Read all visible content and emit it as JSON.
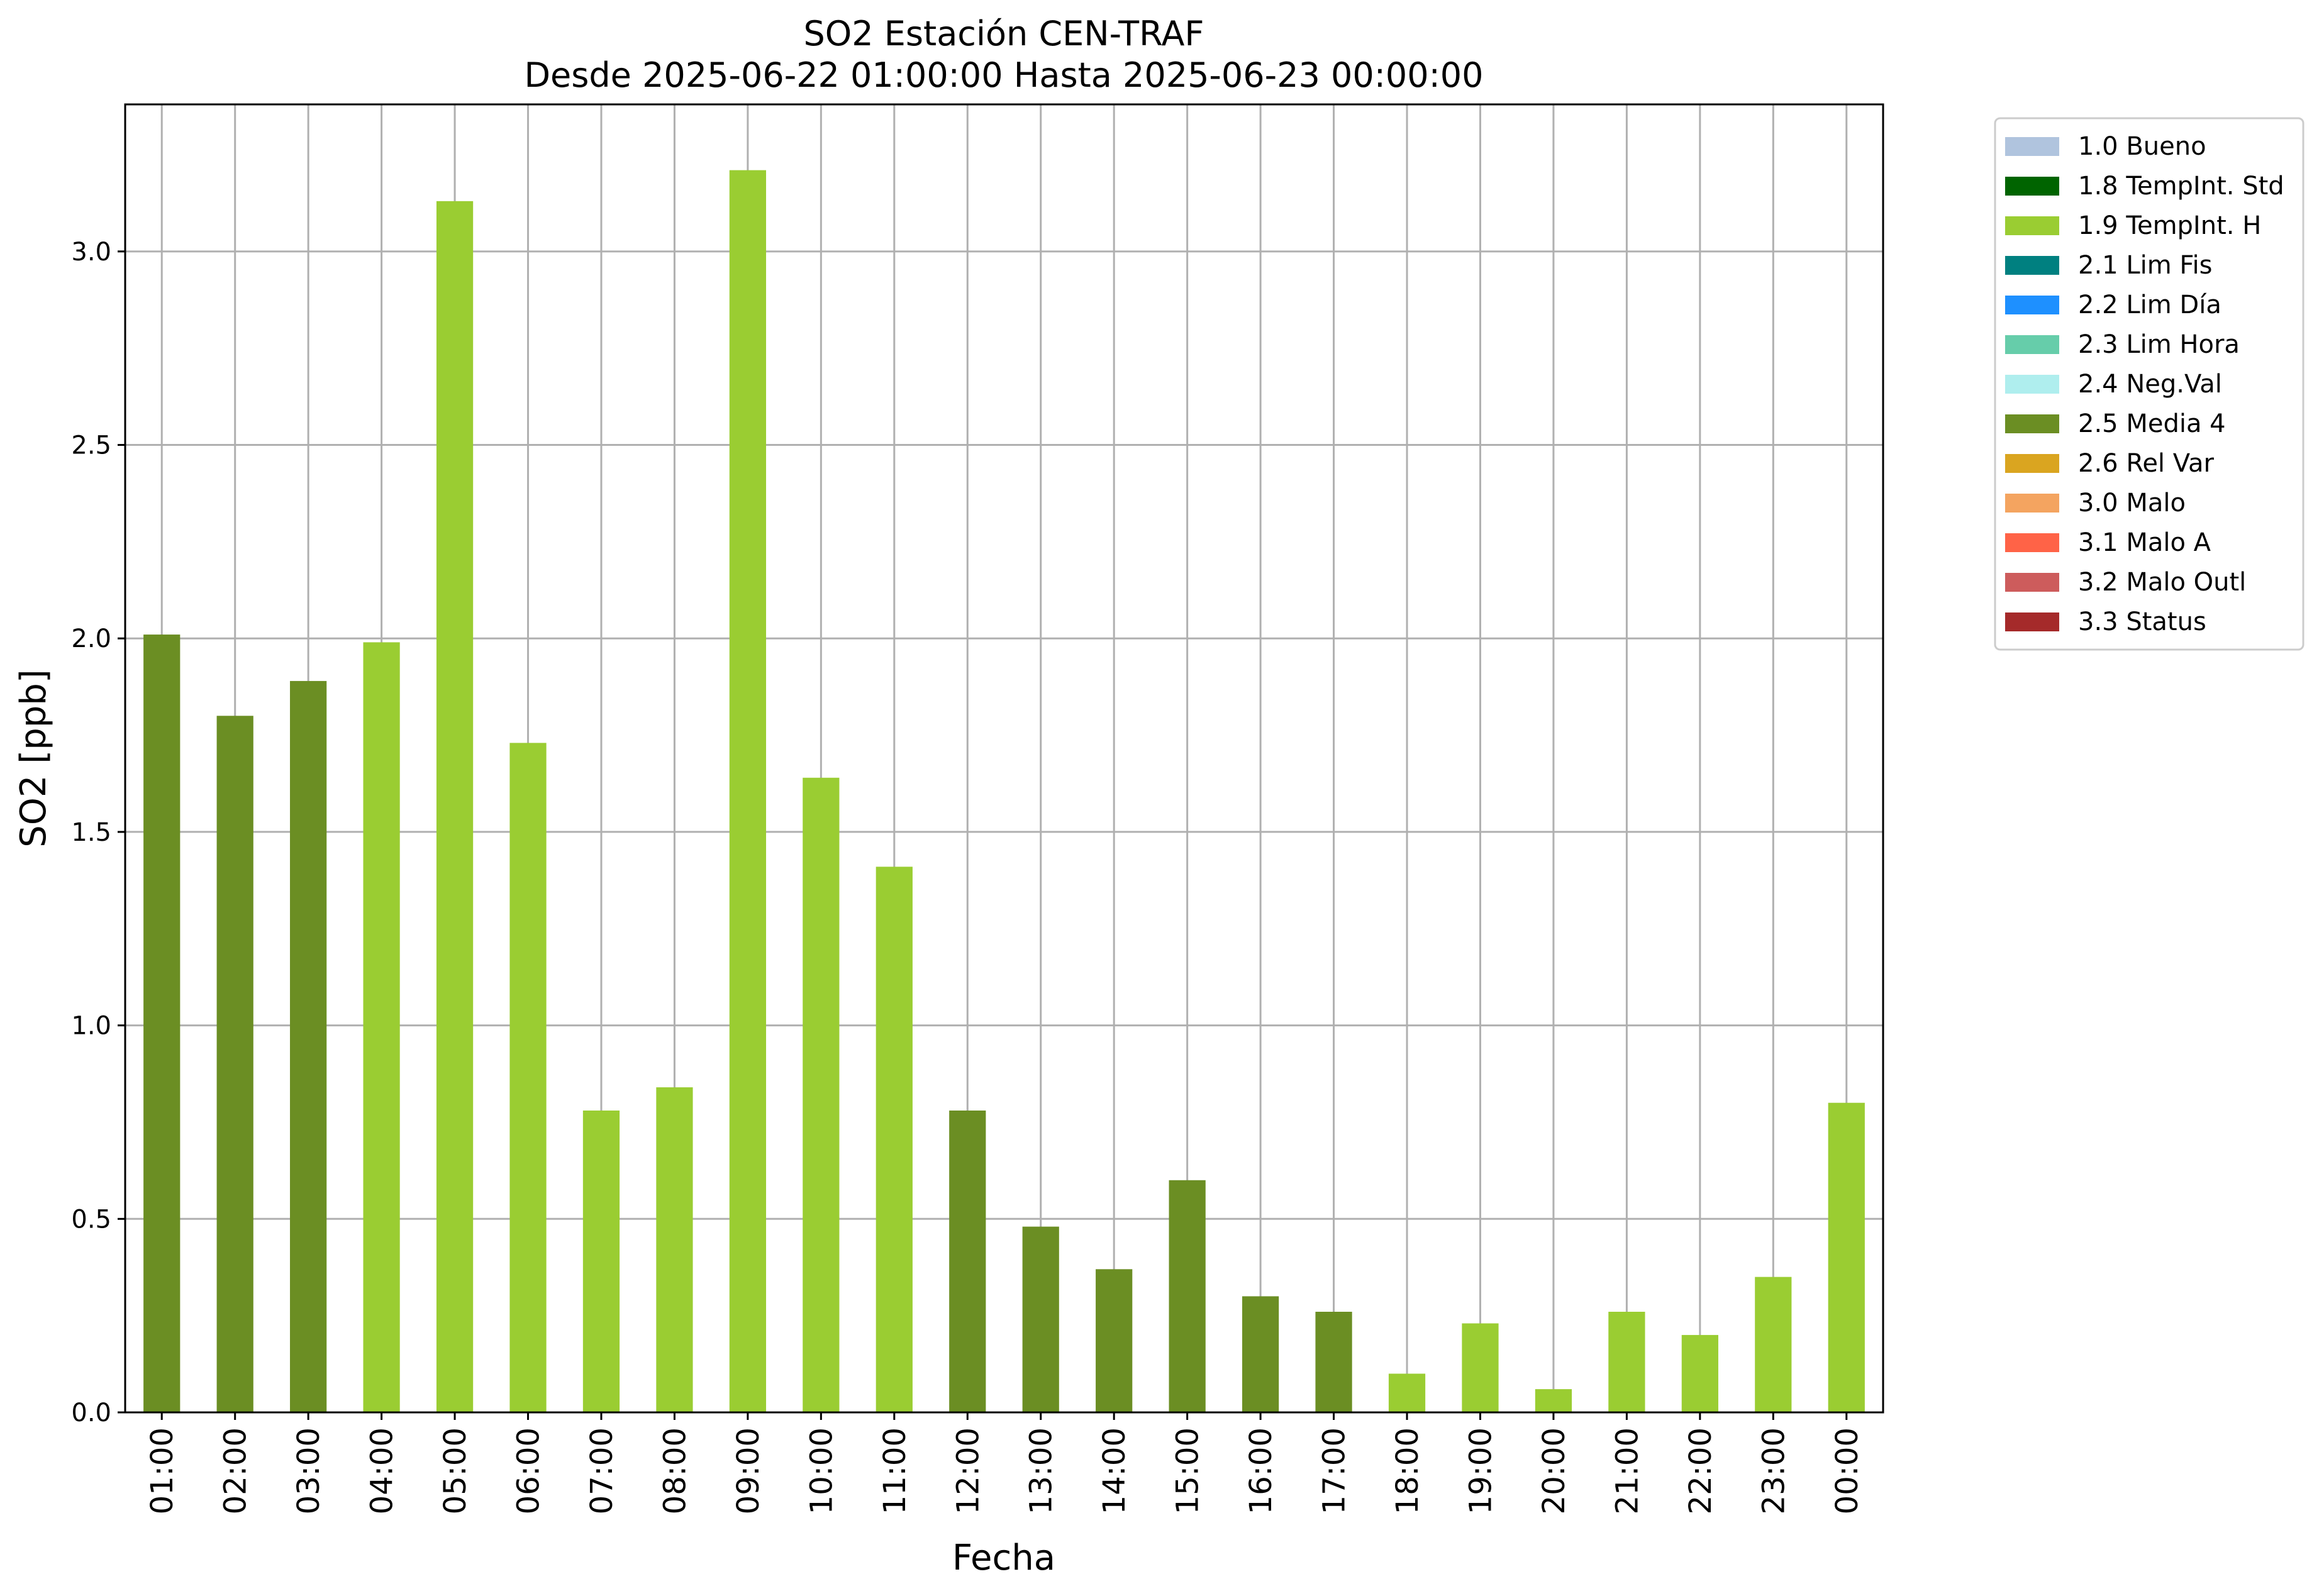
{
  "chart_data": {
    "type": "bar",
    "title": "SO2 Estación CEN-TRAF",
    "subtitle": "Desde 2025-06-22 01:00:00 Hasta 2025-06-23 00:00:00",
    "xlabel": "Fecha",
    "ylabel": "SO2 [ppb]",
    "ylim": [
      0,
      3.38
    ],
    "yticks": [
      0.0,
      0.5,
      1.0,
      1.5,
      2.0,
      2.5,
      3.0
    ],
    "ytick_labels": [
      "0.0",
      "0.5",
      "1.0",
      "1.5",
      "2.0",
      "2.5",
      "3.0"
    ],
    "grid": true,
    "legend_position": "outside-right-top",
    "categories": [
      "01:00",
      "02:00",
      "03:00",
      "04:00",
      "05:00",
      "06:00",
      "07:00",
      "08:00",
      "09:00",
      "10:00",
      "11:00",
      "12:00",
      "13:00",
      "14:00",
      "15:00",
      "16:00",
      "17:00",
      "18:00",
      "19:00",
      "20:00",
      "21:00",
      "22:00",
      "23:00",
      "00:00"
    ],
    "values": [
      2.01,
      1.8,
      1.89,
      1.99,
      3.13,
      1.73,
      0.78,
      0.84,
      3.21,
      1.64,
      1.41,
      0.78,
      0.48,
      0.37,
      0.6,
      0.3,
      0.26,
      0.1,
      0.23,
      0.06,
      0.26,
      0.2,
      0.35,
      0.8
    ],
    "flags": [
      "2.5 Media 4",
      "2.5 Media 4",
      "2.5 Media 4",
      "1.9 TempInt. H",
      "1.9 TempInt. H",
      "1.9 TempInt. H",
      "1.9 TempInt. H",
      "1.9 TempInt. H",
      "1.9 TempInt. H",
      "1.9 TempInt. H",
      "1.9 TempInt. H",
      "2.5 Media 4",
      "2.5 Media 4",
      "2.5 Media 4",
      "2.5 Media 4",
      "2.5 Media 4",
      "2.5 Media 4",
      "1.9 TempInt. H",
      "1.9 TempInt. H",
      "1.9 TempInt. H",
      "1.9 TempInt. H",
      "1.9 TempInt. H",
      "1.9 TempInt. H",
      "1.9 TempInt. H"
    ],
    "legend": [
      {
        "label": "1.0 Bueno",
        "color": "#B0C4DE"
      },
      {
        "label": "1.8 TempInt. Std",
        "color": "#006400"
      },
      {
        "label": "1.9 TempInt. H",
        "color": "#9ACD32"
      },
      {
        "label": "2.1 Lim Fis",
        "color": "#008080"
      },
      {
        "label": "2.2 Lim Día",
        "color": "#1E90FF"
      },
      {
        "label": "2.3 Lim Hora",
        "color": "#66CDAA"
      },
      {
        "label": "2.4 Neg.Val",
        "color": "#AFEEEE"
      },
      {
        "label": "2.5 Media 4",
        "color": "#6B8E23"
      },
      {
        "label": "2.6 Rel Var",
        "color": "#DAA520"
      },
      {
        "label": "3.0 Malo",
        "color": "#F4A460"
      },
      {
        "label": "3.1 Malo A",
        "color": "#FF6347"
      },
      {
        "label": "3.2 Malo Outl",
        "color": "#CD5C5C"
      },
      {
        "label": "3.3 Status",
        "color": "#A52A2A"
      }
    ]
  }
}
